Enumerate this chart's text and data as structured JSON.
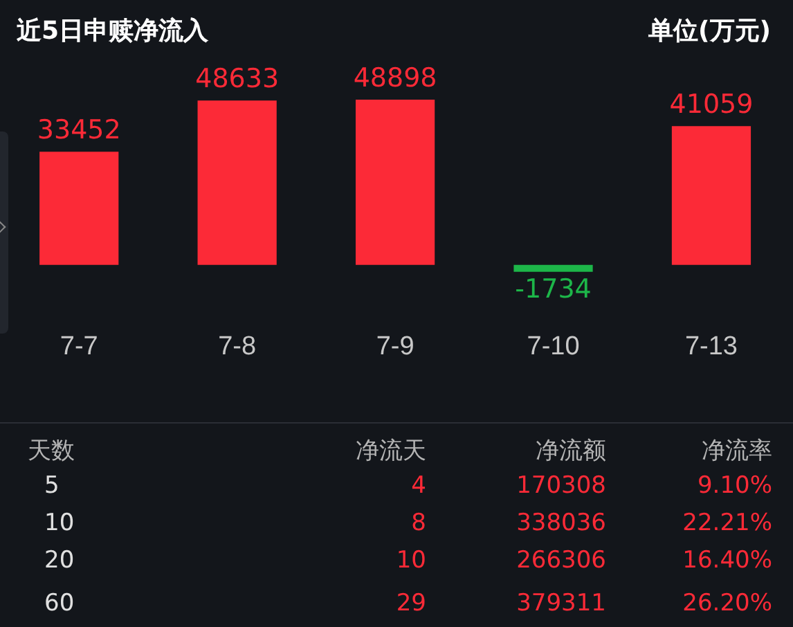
{
  "chart_data": [
    {
      "type": "bar",
      "title": "近5日申赎净流入",
      "subtitle": "单位(万元)",
      "categories": [
        "7-7",
        "7-8",
        "7-9",
        "7-10",
        "7-13"
      ],
      "values": [
        33452,
        48633,
        48898,
        -1734,
        41059
      ],
      "colors": [
        "#fc2a37",
        "#fc2a37",
        "#fc2a37",
        "#1db649",
        "#fc2a37"
      ],
      "data_labels": true,
      "tick_labels": "x",
      "grid": false,
      "legend": false
    },
    {
      "type": "other",
      "annotations": [
        "天数",
        "净流天",
        "净流额",
        "净流率",
        "5",
        "4",
        "170308",
        "9.10%",
        "10",
        "8",
        "338036",
        "22.21%",
        "20",
        "10",
        "266306",
        "16.40%",
        "60",
        "29",
        "379311",
        "26.20%"
      ]
    }
  ]
}
